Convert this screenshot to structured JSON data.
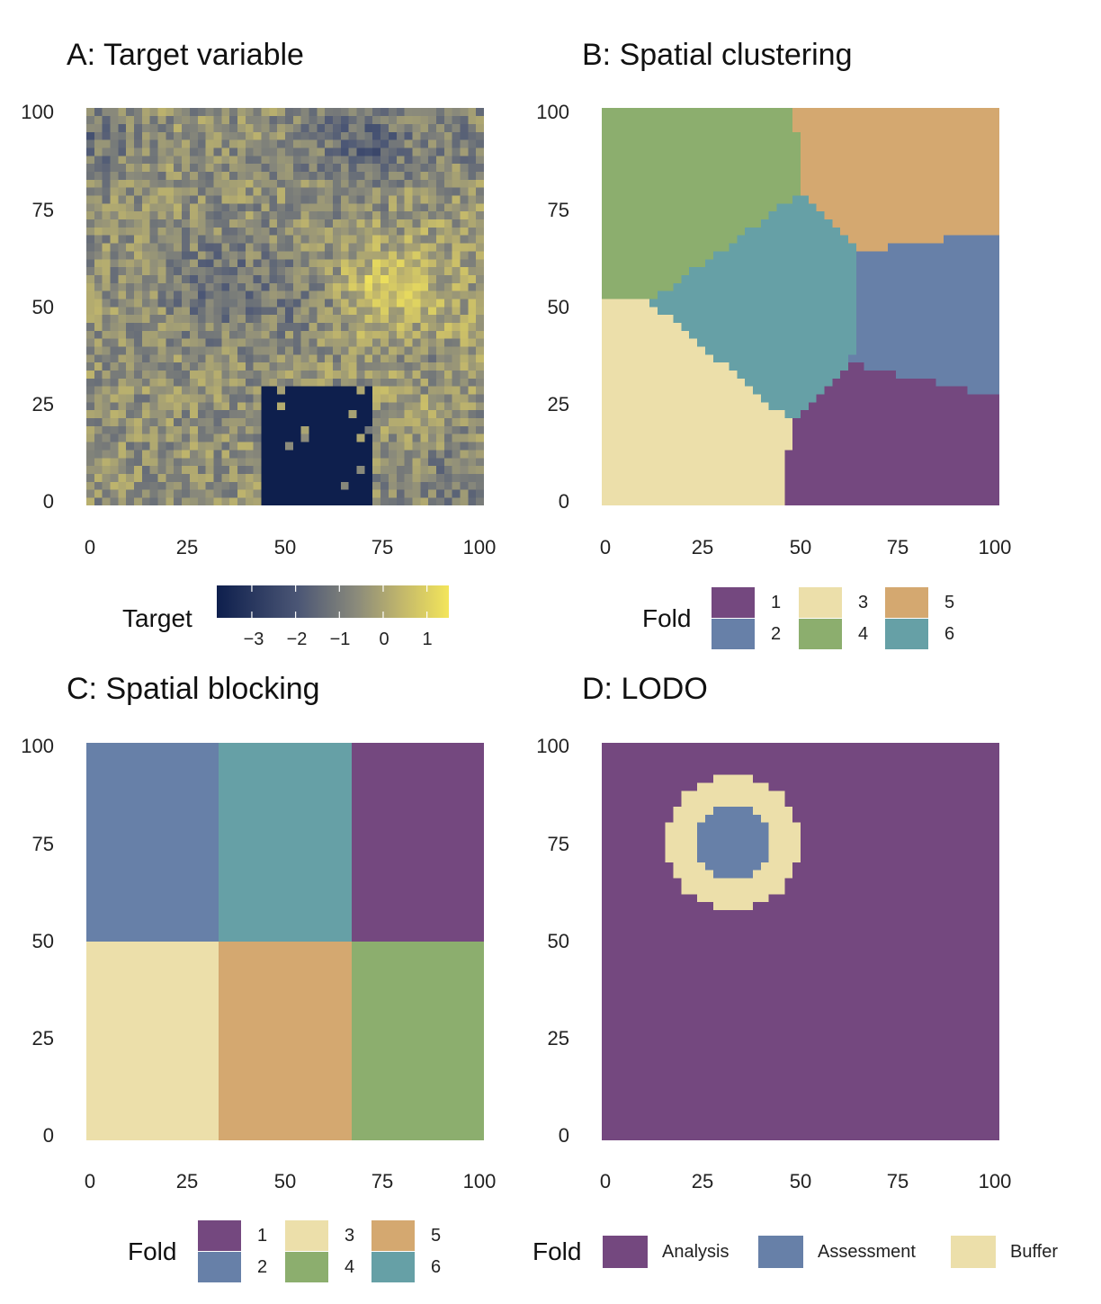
{
  "colors": {
    "fold1": "#74487f",
    "fold2": "#6780a8",
    "fold3": "#ecdfaa",
    "fold4": "#8cae6e",
    "fold5": "#d4a870",
    "fold6": "#66a0a6",
    "target_low": "#0e1f4d",
    "target_mid": "#8a8a7b",
    "target_high": "#f3e55a"
  },
  "chart_data": [
    {
      "type": "heatmap",
      "title": "A: Target variable",
      "xlim": [
        0,
        100
      ],
      "ylim": [
        0,
        100
      ],
      "x_ticks": [
        "0",
        "25",
        "50",
        "75",
        "100"
      ],
      "y_ticks": [
        "0",
        "25",
        "50",
        "75",
        "100"
      ],
      "legend": {
        "title": "Target",
        "type": "colorbar",
        "ticks": [
          "−3",
          "−2",
          "−1",
          "0",
          "1"
        ],
        "range": [
          -3.8,
          1.5
        ],
        "tick_values": [
          -3,
          -2,
          -1,
          0,
          1
        ]
      }
    },
    {
      "type": "heatmap",
      "title": "B: Spatial clustering",
      "xlim": [
        0,
        100
      ],
      "ylim": [
        0,
        100
      ],
      "x_ticks": [
        "0",
        "25",
        "50",
        "75",
        "100"
      ],
      "y_ticks": [
        "0",
        "25",
        "50",
        "75",
        "100"
      ],
      "legend": {
        "title": "Fold",
        "entries": [
          "1",
          "2",
          "3",
          "4",
          "5",
          "6"
        ]
      }
    },
    {
      "type": "heatmap",
      "title": "C: Spatial blocking",
      "xlim": [
        0,
        100
      ],
      "ylim": [
        0,
        100
      ],
      "x_ticks": [
        "0",
        "25",
        "50",
        "75",
        "100"
      ],
      "y_ticks": [
        "0",
        "25",
        "50",
        "75",
        "100"
      ],
      "blocks": [
        {
          "fold": 2,
          "x": [
            0,
            33.3
          ],
          "y": [
            50,
            100
          ]
        },
        {
          "fold": 6,
          "x": [
            33.3,
            66.7
          ],
          "y": [
            50,
            100
          ]
        },
        {
          "fold": 1,
          "x": [
            66.7,
            100
          ],
          "y": [
            50,
            100
          ]
        },
        {
          "fold": 3,
          "x": [
            0,
            33.3
          ],
          "y": [
            0,
            50
          ]
        },
        {
          "fold": 5,
          "x": [
            33.3,
            66.7
          ],
          "y": [
            0,
            50
          ]
        },
        {
          "fold": 4,
          "x": [
            66.7,
            100
          ],
          "y": [
            0,
            50
          ]
        }
      ],
      "legend": {
        "title": "Fold",
        "entries": [
          "1",
          "2",
          "3",
          "4",
          "5",
          "6"
        ]
      }
    },
    {
      "type": "heatmap",
      "title": "D: LODO",
      "xlim": [
        0,
        100
      ],
      "ylim": [
        0,
        100
      ],
      "x_ticks": [
        "0",
        "25",
        "50",
        "75",
        "100"
      ],
      "y_ticks": [
        "0",
        "25",
        "50",
        "75",
        "100"
      ],
      "regions": {
        "assessment_center": [
          33,
          75
        ],
        "assessment_radius": 9,
        "buffer_radius": 17
      },
      "legend": {
        "title": "Fold",
        "entries": [
          "Analysis",
          "Assessment",
          "Buffer"
        ]
      }
    }
  ]
}
